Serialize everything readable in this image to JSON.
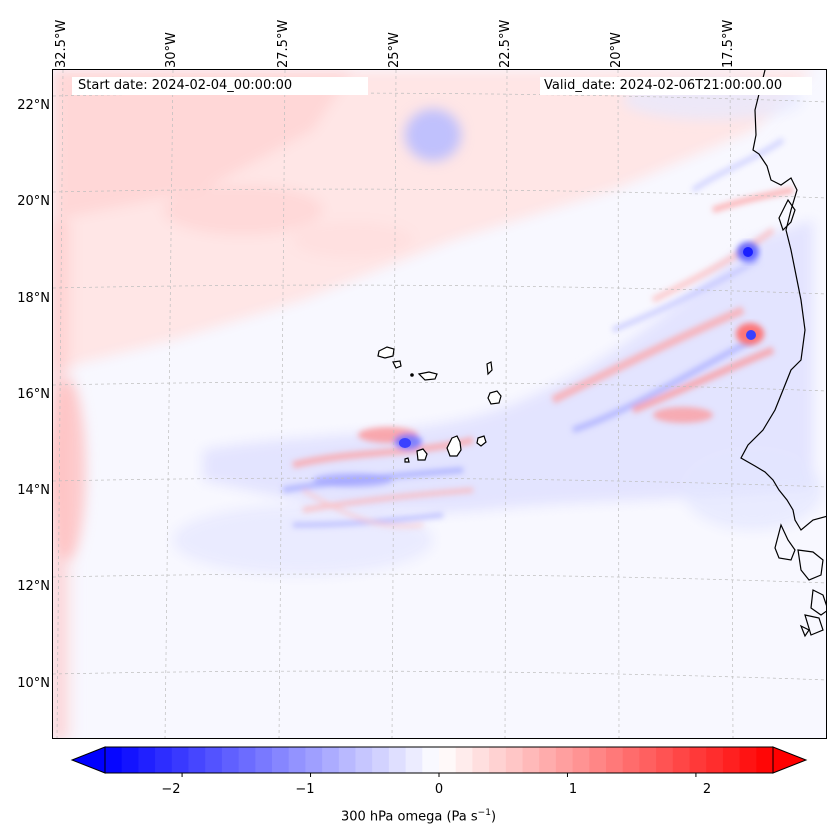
{
  "map": {
    "field": "300 hPa omega",
    "start_date_text": "Start date: 2024-02-04_00:00:00",
    "valid_date_text": "Valid_date: 2024-02-06T21:00:00.00",
    "lon_labels": [
      "32.5°W",
      "30°W",
      "27.5°W",
      "25°W",
      "22.5°W",
      "20°W",
      "17.5°W"
    ],
    "lat_labels": [
      "22°N",
      "20°N",
      "18°N",
      "16°N",
      "14°N",
      "12°N",
      "10°N"
    ]
  },
  "colorbar": {
    "ticks": [
      "−2",
      "−1",
      "0",
      "1",
      "2"
    ],
    "label_prefix": "300 hPa omega (Pa s",
    "label_exp": "−1",
    "label_suffix": ")",
    "min": -2.6,
    "max": 2.6,
    "colors": {
      "negative": "#0000ff",
      "neutral": "#ffffff",
      "positive": "#ff0000"
    }
  }
}
